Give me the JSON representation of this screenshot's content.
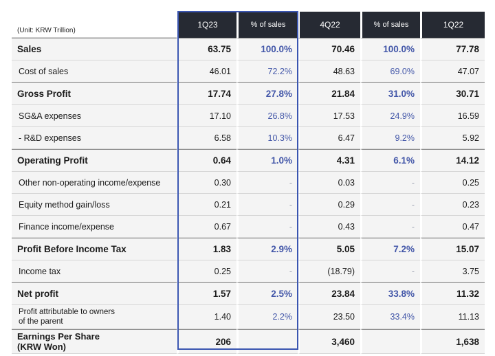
{
  "unit_label": "(Unit: KRW Trillion)",
  "columns": [
    "1Q23",
    "% of sales",
    "4Q22",
    "% of sales",
    "1Q22"
  ],
  "rows": [
    {
      "label": "Sales",
      "bold": true,
      "values": [
        "63.75",
        "100.0%",
        "70.46",
        "100.0%",
        "77.78"
      ]
    },
    {
      "label": "Cost of sales",
      "bold": false,
      "values": [
        "46.01",
        "72.2%",
        "48.63",
        "69.0%",
        "47.07"
      ]
    },
    {
      "label": "Gross Profit",
      "bold": true,
      "values": [
        "17.74",
        "27.8%",
        "21.84",
        "31.0%",
        "30.71"
      ]
    },
    {
      "label": "SG&A expenses",
      "bold": false,
      "values": [
        "17.10",
        "26.8%",
        "17.53",
        "24.9%",
        "16.59"
      ]
    },
    {
      "label": "- R&D expenses",
      "bold": false,
      "values": [
        "6.58",
        "10.3%",
        "6.47",
        "9.2%",
        "5.92"
      ]
    },
    {
      "label": "Operating Profit",
      "bold": true,
      "values": [
        "0.64",
        "1.0%",
        "4.31",
        "6.1%",
        "14.12"
      ]
    },
    {
      "label": "Other non-operating income/expense",
      "bold": false,
      "values": [
        "0.30",
        "-",
        "0.03",
        "-",
        "0.25"
      ]
    },
    {
      "label": "Equity method gain/loss",
      "bold": false,
      "values": [
        "0.21",
        "-",
        "0.29",
        "-",
        "0.23"
      ]
    },
    {
      "label": "Finance income/expense",
      "bold": false,
      "values": [
        "0.67",
        "-",
        "0.43",
        "-",
        "0.47"
      ]
    },
    {
      "label": "Profit Before Income Tax",
      "bold": true,
      "values": [
        "1.83",
        "2.9%",
        "5.05",
        "7.2%",
        "15.07"
      ]
    },
    {
      "label": "Income tax",
      "bold": false,
      "values": [
        "0.25",
        "-",
        "(18.79)",
        "-",
        "3.75"
      ]
    },
    {
      "label": "Net profit",
      "bold": true,
      "values": [
        "1.57",
        "2.5%",
        "23.84",
        "33.8%",
        "11.32"
      ]
    },
    {
      "label": "Profit attributable to owners\nof the parent",
      "bold": false,
      "two_line": true,
      "values": [
        "1.40",
        "2.2%",
        "23.50",
        "33.4%",
        "11.13"
      ]
    },
    {
      "label": "Earnings Per Share\n(KRW Won)",
      "bold": true,
      "eps": true,
      "values": [
        "206",
        "",
        "3,460",
        "",
        "1,638"
      ]
    }
  ],
  "highlight_color": "#3a55b0",
  "percent_color": "#4256a8",
  "header_color": "#262a33"
}
